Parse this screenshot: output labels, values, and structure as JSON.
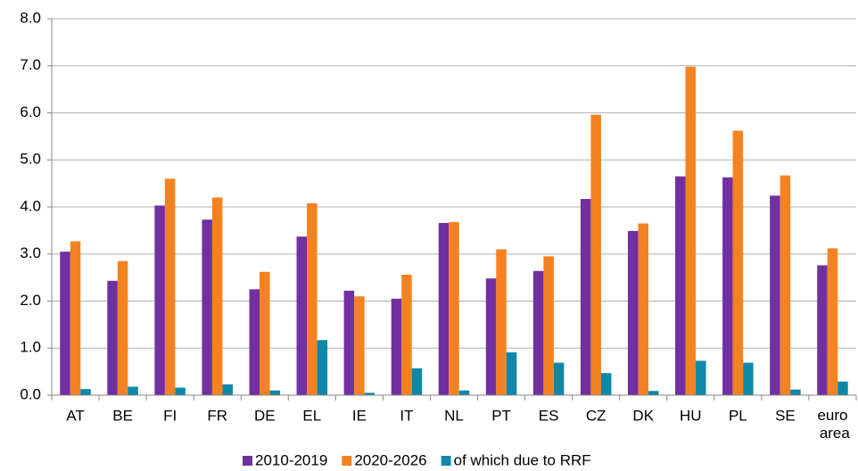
{
  "chart_data": {
    "type": "bar",
    "categories": [
      "AT",
      "BE",
      "FI",
      "FR",
      "DE",
      "EL",
      "IE",
      "IT",
      "NL",
      "PT",
      "ES",
      "CZ",
      "DK",
      "HU",
      "PL",
      "SE",
      "euro area"
    ],
    "series": [
      {
        "name": "2010-2019",
        "color": "#7030a0",
        "values": [
          3.05,
          2.43,
          4.03,
          3.73,
          2.25,
          3.37,
          2.22,
          2.05,
          3.66,
          2.48,
          2.64,
          4.17,
          3.49,
          4.65,
          4.63,
          4.24,
          2.76
        ]
      },
      {
        "name": "2020-2026",
        "color": "#f58220",
        "values": [
          3.27,
          2.85,
          4.6,
          4.2,
          2.62,
          4.08,
          2.1,
          2.56,
          3.68,
          3.1,
          2.95,
          5.96,
          3.65,
          6.98,
          5.62,
          4.67,
          3.12
        ]
      },
      {
        "name": "of which due to RRF",
        "color": "#0e88a8",
        "values": [
          0.13,
          0.18,
          0.16,
          0.23,
          0.1,
          1.17,
          0.05,
          0.57,
          0.1,
          0.91,
          0.69,
          0.47,
          0.09,
          0.73,
          0.69,
          0.12,
          0.29
        ]
      }
    ],
    "ylim": [
      0,
      8
    ],
    "yticks": [
      {
        "value": 0,
        "label": "0.0"
      },
      {
        "value": 1,
        "label": "1.0"
      },
      {
        "value": 2,
        "label": "2.0"
      },
      {
        "value": 3,
        "label": "3.0"
      },
      {
        "value": 4,
        "label": "4.0"
      },
      {
        "value": 5,
        "label": "5.0"
      },
      {
        "value": 6,
        "label": "6.0"
      },
      {
        "value": 7,
        "label": "7.0"
      },
      {
        "value": 8,
        "label": "8.0"
      }
    ],
    "grid": true,
    "legend": "bottom"
  }
}
